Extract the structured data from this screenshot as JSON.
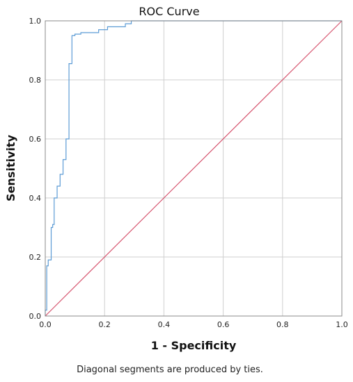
{
  "chart_data": {
    "type": "line",
    "title": "ROC Curve",
    "xlabel": "1 - Specificity",
    "ylabel": "Sensitivity",
    "footnote": "Diagonal segments are produced by ties.",
    "xlim": [
      0.0,
      1.0
    ],
    "ylim": [
      0.0,
      1.0
    ],
    "xticks": [
      "0.0",
      "0.2",
      "0.4",
      "0.6",
      "0.8",
      "1.0"
    ],
    "yticks": [
      "0.0",
      "0.2",
      "0.4",
      "0.6",
      "0.8",
      "1.0"
    ],
    "grid": true,
    "series": [
      {
        "color": "#5b9bd5",
        "x": [
          0.0,
          0.0,
          0.005,
          0.005,
          0.01,
          0.01,
          0.02,
          0.02,
          0.025,
          0.025,
          0.03,
          0.03,
          0.04,
          0.04,
          0.05,
          0.05,
          0.06,
          0.06,
          0.07,
          0.07,
          0.08,
          0.08,
          0.09,
          0.09,
          0.1,
          0.1,
          0.12,
          0.12,
          0.18,
          0.18,
          0.21,
          0.21,
          0.27,
          0.27,
          0.29,
          0.29,
          1.0
        ],
        "y": [
          0.0,
          0.02,
          0.02,
          0.17,
          0.17,
          0.19,
          0.19,
          0.3,
          0.3,
          0.31,
          0.31,
          0.4,
          0.4,
          0.44,
          0.44,
          0.48,
          0.48,
          0.53,
          0.53,
          0.6,
          0.6,
          0.855,
          0.855,
          0.95,
          0.95,
          0.955,
          0.955,
          0.96,
          0.96,
          0.97,
          0.97,
          0.98,
          0.98,
          0.99,
          0.99,
          1.0,
          1.0
        ]
      },
      {
        "color": "#d6546e",
        "x": [
          0.0,
          1.0
        ],
        "y": [
          0.0,
          1.0
        ]
      }
    ]
  }
}
